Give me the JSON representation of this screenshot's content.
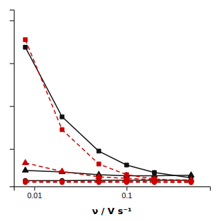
{
  "chart_data": {
    "type": "line",
    "x_label": "ν / V s⁻¹",
    "x": [
      0.008,
      0.02,
      0.05,
      0.1,
      0.2,
      0.5
    ],
    "series": [
      {
        "color": "#111111",
        "marker": "square",
        "line_style": "solid",
        "values": [
          13.5,
          7.0,
          3.8,
          2.5,
          1.8,
          1.3
        ]
      },
      {
        "color": "#111111",
        "marker": "triangle",
        "line_style": "solid",
        "values": [
          2.0,
          1.85,
          1.6,
          1.5,
          1.5,
          1.55
        ]
      },
      {
        "color": "#111111",
        "marker": "circle",
        "line_style": "solid",
        "values": [
          1.05,
          1.05,
          1.08,
          1.08,
          1.08,
          1.08
        ]
      },
      {
        "color": "#cc0000",
        "marker": "square",
        "line_style": "dashed",
        "values": [
          14.2,
          5.8,
          2.6,
          1.6,
          1.2,
          0.95
        ]
      },
      {
        "color": "#cc0000",
        "marker": "triangle",
        "line_style": "dashed",
        "values": [
          2.7,
          1.9,
          1.4,
          1.25,
          1.15,
          1.1
        ]
      },
      {
        "color": "#cc0000",
        "marker": "circle",
        "line_style": "dashed",
        "values": [
          1.0,
          0.98,
          0.98,
          0.98,
          0.98,
          0.97
        ]
      },
      {
        "color": "#cc0000",
        "marker": "circle",
        "line_style": "dashed",
        "values": [
          0.88,
          0.88,
          0.88,
          0.88,
          0.88,
          0.87
        ]
      }
    ],
    "xlim": [
      0.006,
      0.8
    ],
    "ylim": [
      0.5,
      17
    ],
    "xticks": [
      0.01,
      0.1
    ],
    "yticks": [
      4,
      8,
      12,
      16
    ],
    "log": "x",
    "grid": false,
    "tick_labels": "x"
  }
}
